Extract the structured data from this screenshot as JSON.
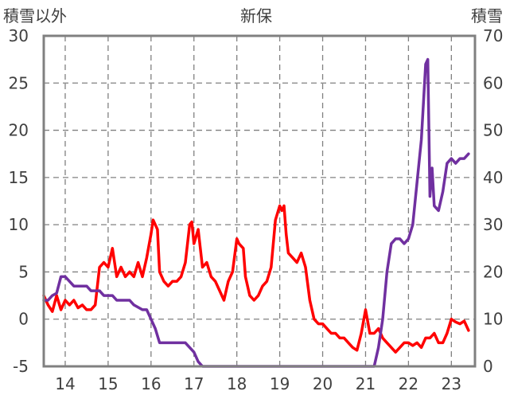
{
  "chart_data": {
    "type": "line",
    "title": "新保",
    "ylabel": "積雪以外",
    "y2label": "積雪",
    "xlabel": "",
    "xlim": [
      13.5,
      23.55
    ],
    "ylim": [
      -5,
      30
    ],
    "y2lim": [
      0,
      70
    ],
    "x_ticks": [
      14,
      15,
      16,
      17,
      18,
      19,
      20,
      21,
      22,
      23
    ],
    "y_ticks": [
      -5,
      0,
      5,
      10,
      15,
      20,
      25,
      30
    ],
    "y2_ticks": [
      0,
      10,
      20,
      30,
      40,
      50,
      60,
      70
    ],
    "grid": true,
    "legend": "none",
    "series": [
      {
        "axis": "left",
        "color": "#ff0000",
        "x": [
          13.5,
          13.6,
          13.7,
          13.8,
          13.9,
          14.0,
          14.1,
          14.2,
          14.3,
          14.4,
          14.5,
          14.6,
          14.7,
          14.8,
          14.9,
          15.0,
          15.1,
          15.2,
          15.3,
          15.4,
          15.5,
          15.6,
          15.7,
          15.8,
          15.9,
          16.0,
          16.05,
          16.15,
          16.2,
          16.3,
          16.4,
          16.5,
          16.6,
          16.7,
          16.8,
          16.9,
          16.95,
          17.0,
          17.1,
          17.2,
          17.3,
          17.4,
          17.5,
          17.6,
          17.7,
          17.8,
          17.9,
          18.0,
          18.05,
          18.15,
          18.2,
          18.3,
          18.4,
          18.5,
          18.6,
          18.7,
          18.8,
          18.9,
          19.0,
          19.05,
          19.1,
          19.15,
          19.2,
          19.3,
          19.4,
          19.5,
          19.6,
          19.7,
          19.8,
          19.9,
          20.0,
          20.1,
          20.2,
          20.3,
          20.4,
          20.5,
          20.6,
          20.7,
          20.8,
          20.9,
          21.0,
          21.1,
          21.2,
          21.3,
          21.4,
          21.5,
          21.6,
          21.7,
          21.8,
          21.9,
          22.0,
          22.1,
          22.2,
          22.3,
          22.4,
          22.5,
          22.6,
          22.7,
          22.8,
          22.9,
          23.0,
          23.1,
          23.2,
          23.3,
          23.4
        ],
        "y": [
          2.5,
          1.5,
          0.8,
          2.5,
          1.0,
          2.0,
          1.5,
          2.0,
          1.2,
          1.5,
          1.0,
          1.0,
          1.5,
          5.5,
          6.0,
          5.5,
          7.5,
          4.5,
          5.5,
          4.5,
          5.0,
          4.5,
          6.0,
          4.5,
          6.5,
          9.0,
          10.5,
          9.5,
          5.0,
          4.0,
          3.5,
          4.0,
          4.0,
          4.5,
          6.0,
          10.0,
          10.3,
          8.0,
          9.5,
          5.5,
          6.0,
          4.5,
          4.0,
          3.0,
          2.0,
          4.0,
          5.0,
          8.5,
          8.0,
          7.5,
          4.5,
          2.5,
          2.0,
          2.5,
          3.5,
          4.0,
          5.5,
          10.5,
          12.0,
          11.5,
          12.0,
          9.0,
          7.0,
          6.5,
          6.0,
          7.0,
          5.5,
          2.0,
          0.0,
          -0.5,
          -0.5,
          -1.0,
          -1.5,
          -1.5,
          -2.0,
          -2.0,
          -2.5,
          -3.0,
          -3.3,
          -1.5,
          1.0,
          -1.5,
          -1.5,
          -1.0,
          -2.0,
          -2.5,
          -3.0,
          -3.5,
          -3.0,
          -2.5,
          -2.5,
          -2.8,
          -2.5,
          -3.0,
          -2.0,
          -2.0,
          -1.5,
          -2.5,
          -2.5,
          -1.5,
          0.0,
          -0.3,
          -0.5,
          -0.2,
          -1.2
        ]
      },
      {
        "axis": "right",
        "color": "#7030a0",
        "x": [
          13.5,
          13.6,
          13.7,
          13.8,
          13.9,
          14.0,
          14.1,
          14.2,
          14.4,
          14.5,
          14.6,
          14.8,
          14.9,
          15.1,
          15.2,
          15.5,
          15.6,
          15.8,
          15.9,
          16.0,
          16.1,
          16.2,
          16.5,
          16.8,
          16.9,
          17.0,
          17.1,
          17.2,
          18.0,
          19.0,
          20.0,
          21.2,
          21.3,
          21.4,
          21.5,
          21.6,
          21.7,
          21.8,
          21.9,
          22.0,
          22.1,
          22.2,
          22.3,
          22.4,
          22.45,
          22.5,
          22.55,
          22.6,
          22.7,
          22.8,
          22.9,
          23.0,
          23.1,
          23.2,
          23.3,
          23.4
        ],
        "y": [
          14,
          14,
          15,
          15.5,
          19,
          19,
          18,
          17,
          17,
          17,
          16,
          16,
          15,
          15,
          14,
          14,
          13,
          12,
          12,
          10,
          8,
          5,
          5,
          5,
          4,
          3,
          1,
          0,
          0,
          0,
          0,
          0,
          4,
          10,
          20,
          26,
          27,
          27,
          26,
          27,
          30,
          39,
          48,
          64,
          65,
          36,
          42,
          34,
          33,
          37,
          43,
          44,
          43,
          44,
          44,
          45
        ]
      }
    ]
  }
}
